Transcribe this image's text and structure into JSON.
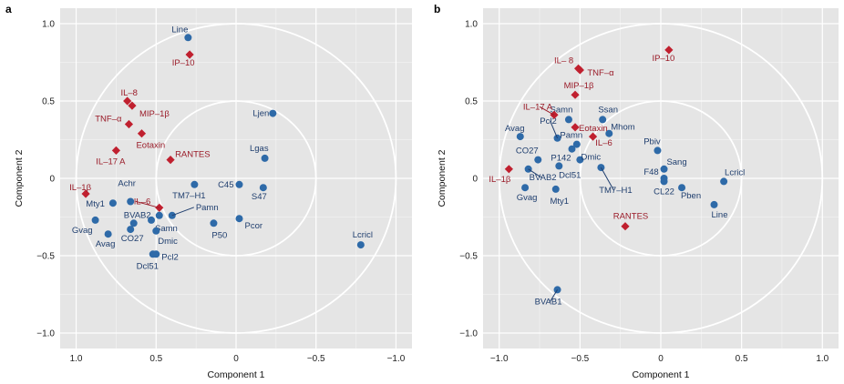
{
  "colors": {
    "panel_bg": "#e5e5e5",
    "grid": "#ffffff",
    "point_blue": "#2e6aa8",
    "label_blue": "#1f3e6e",
    "point_red": "#c0202f",
    "label_red": "#9a1b28"
  },
  "chart_data": [
    {
      "type": "scatter",
      "panel_label": "a",
      "xlabel": "Component 1",
      "ylabel": "Component 2",
      "xlim": [
        1.1,
        -1.1
      ],
      "ylim": [
        -1.1,
        1.1
      ],
      "x_reversed": true,
      "xticks": [
        1.0,
        0.5,
        0.0,
        -0.5,
        -1.0
      ],
      "xtick_labels": [
        "1.0",
        "0.5",
        "0",
        "−0.5",
        "−1.0"
      ],
      "yticks": [
        1.0,
        0.5,
        0.0,
        -0.5,
        -1.0
      ],
      "ytick_labels": [
        "1.0",
        "0.5",
        "0",
        "−0.5",
        "−1.0"
      ],
      "grid": true,
      "circles": [
        1.0,
        0.5
      ],
      "series": [
        {
          "marker": "circle",
          "color_key": "point_blue",
          "points": [
            {
              "label": "Line",
              "x": 0.3,
              "y": 0.91,
              "lx": 0,
              "ly": -6,
              "anchor": "end"
            },
            {
              "label": "Ljen",
              "x": -0.23,
              "y": 0.42,
              "lx": -4,
              "ly": 3,
              "anchor": "end"
            },
            {
              "label": "Lgas",
              "x": -0.18,
              "y": 0.13,
              "lx": 4,
              "ly": -8,
              "anchor": "end"
            },
            {
              "label": "C45",
              "x": -0.02,
              "y": -0.04,
              "lx": -6,
              "ly": 3,
              "anchor": "end"
            },
            {
              "label": "S47",
              "x": -0.17,
              "y": -0.06,
              "lx": 4,
              "ly": 13,
              "anchor": "end"
            },
            {
              "label": "Pcor",
              "x": -0.02,
              "y": -0.26,
              "lx": 6,
              "ly": 11,
              "anchor": "start"
            },
            {
              "label": "P50",
              "x": 0.14,
              "y": -0.29,
              "lx": -2,
              "ly": 16,
              "anchor": "start"
            },
            {
              "label": "TM7–H1",
              "x": 0.26,
              "y": -0.04,
              "lx": -6,
              "ly": 15,
              "anchor": "middle"
            },
            {
              "label": "Pamn",
              "x": 0.4,
              "y": -0.24,
              "lx": 26,
              "ly": -6,
              "anchor": "start"
            },
            {
              "label": "Achr",
              "x": 0.66,
              "y": -0.15,
              "lx": -4,
              "ly": -17,
              "anchor": "middle"
            },
            {
              "label": "Mty1",
              "x": 0.77,
              "y": -0.16,
              "lx": -9,
              "ly": 4,
              "anchor": "end"
            },
            {
              "label": "Gvag",
              "x": 0.88,
              "y": -0.27,
              "lx": -3,
              "ly": 14,
              "anchor": "end"
            },
            {
              "label": "Avag",
              "x": 0.8,
              "y": -0.36,
              "lx": -3,
              "ly": 14,
              "anchor": "middle"
            },
            {
              "label": "BVAB2",
              "x": 0.64,
              "y": -0.29,
              "lx": 4,
              "ly": -6,
              "anchor": "middle"
            },
            {
              "label": "CO27",
              "x": 0.66,
              "y": -0.33,
              "lx": 2,
              "ly": 13,
              "anchor": "middle"
            },
            {
              "label": "Samn",
              "x": 0.53,
              "y": -0.27,
              "lx": 4,
              "ly": 12,
              "anchor": "start"
            },
            {
              "label": "Dmic",
              "x": 0.5,
              "y": -0.34,
              "lx": 2,
              "ly": 14,
              "anchor": "start"
            },
            {
              "label": "Dcl51",
              "x": 0.52,
              "y": -0.49,
              "lx": -6,
              "ly": 16,
              "anchor": "middle"
            },
            {
              "label": "Pcl2",
              "x": 0.5,
              "y": -0.49,
              "lx": 6,
              "ly": 6,
              "anchor": "start"
            },
            {
              "label": "",
              "x": 0.48,
              "y": -0.24,
              "lx": 0,
              "ly": 0,
              "anchor": "start"
            },
            {
              "label": "Lcricl",
              "x": -0.78,
              "y": -0.43,
              "lx": 2,
              "ly": -8,
              "anchor": "middle"
            }
          ]
        },
        {
          "marker": "diamond",
          "color_key": "point_red",
          "points": [
            {
              "label": "IP–10",
              "x": 0.29,
              "y": 0.8,
              "lx": -7,
              "ly": 12,
              "anchor": "middle"
            },
            {
              "label": "IL–8",
              "x": 0.68,
              "y": 0.5,
              "lx": 2,
              "ly": -6,
              "anchor": "middle"
            },
            {
              "label": "MIP–1β",
              "x": 0.65,
              "y": 0.47,
              "lx": 8,
              "ly": 12,
              "anchor": "start"
            },
            {
              "label": "TNF–α",
              "x": 0.67,
              "y": 0.35,
              "lx": -8,
              "ly": -3,
              "anchor": "end"
            },
            {
              "label": "Eotaxin",
              "x": 0.59,
              "y": 0.29,
              "lx": -6,
              "ly": 16,
              "anchor": "start"
            },
            {
              "label": "RANTES",
              "x": 0.41,
              "y": 0.12,
              "lx": 5,
              "ly": -3,
              "anchor": "start"
            },
            {
              "label": "IL–17 A",
              "x": 0.75,
              "y": 0.18,
              "lx": -6,
              "ly": 15,
              "anchor": "middle"
            },
            {
              "label": "IL–1β",
              "x": 0.94,
              "y": -0.1,
              "lx": -6,
              "ly": -4,
              "anchor": "middle"
            },
            {
              "label": "IL–6",
              "x": 0.48,
              "y": -0.19,
              "lx": -28,
              "ly": -4,
              "anchor": "start"
            }
          ]
        }
      ]
    },
    {
      "type": "scatter",
      "panel_label": "b",
      "xlabel": "Component 1",
      "ylabel": "Component 2",
      "xlim": [
        -1.1,
        1.1
      ],
      "ylim": [
        -1.1,
        1.1
      ],
      "x_reversed": false,
      "xticks": [
        -1.0,
        -0.5,
        0.0,
        0.5,
        1.0
      ],
      "xtick_labels": [
        "−1.0",
        "−0.5",
        "0",
        "0.5",
        "1.0"
      ],
      "yticks": [
        1.0,
        0.5,
        0.0,
        -0.5,
        -1.0
      ],
      "ytick_labels": [
        "1.0",
        "0.5",
        "0",
        "−0.5",
        "−1.0"
      ],
      "grid": true,
      "circles": [
        1.0,
        0.5
      ],
      "series": [
        {
          "marker": "circle",
          "color_key": "point_blue",
          "points": [
            {
              "label": "Avag",
              "x": -0.87,
              "y": 0.27,
              "lx": -6,
              "ly": -6,
              "anchor": "middle"
            },
            {
              "label": "Samn",
              "x": -0.57,
              "y": 0.38,
              "lx": -8,
              "ly": -8,
              "anchor": "middle"
            },
            {
              "label": "Ssan",
              "x": -0.36,
              "y": 0.38,
              "lx": 6,
              "ly": -8,
              "anchor": "middle"
            },
            {
              "label": "Mhom",
              "x": -0.32,
              "y": 0.29,
              "lx": 2,
              "ly": -4,
              "anchor": "start"
            },
            {
              "label": "Pcl2",
              "x": -0.64,
              "y": 0.26,
              "lx": -10,
              "ly": -16,
              "anchor": "middle"
            },
            {
              "label": "Pamn",
              "x": -0.52,
              "y": 0.22,
              "lx": -6,
              "ly": -7,
              "anchor": "middle"
            },
            {
              "label": "P142",
              "x": -0.55,
              "y": 0.19,
              "lx": -12,
              "ly": 13,
              "anchor": "middle"
            },
            {
              "label": "CO27",
              "x": -0.76,
              "y": 0.12,
              "lx": -12,
              "ly": -7,
              "anchor": "middle"
            },
            {
              "label": "Dmic",
              "x": -0.5,
              "y": 0.12,
              "lx": 12,
              "ly": 0,
              "anchor": "middle"
            },
            {
              "label": "Dcl51",
              "x": -0.63,
              "y": 0.08,
              "lx": 12,
              "ly": 13,
              "anchor": "middle"
            },
            {
              "label": "BVAB2",
              "x": -0.82,
              "y": 0.06,
              "lx": 16,
              "ly": 12,
              "anchor": "middle"
            },
            {
              "label": "Gvag",
              "x": -0.84,
              "y": -0.06,
              "lx": 2,
              "ly": 14,
              "anchor": "middle"
            },
            {
              "label": "Mty1",
              "x": -0.65,
              "y": -0.07,
              "lx": 4,
              "ly": 16,
              "anchor": "middle"
            },
            {
              "label": "TM7–H1",
              "x": -0.37,
              "y": 0.07,
              "lx": 16,
              "ly": 28,
              "anchor": "middle"
            },
            {
              "label": "Pbiv",
              "x": -0.02,
              "y": 0.18,
              "lx": -6,
              "ly": -7,
              "anchor": "middle"
            },
            {
              "label": "Sang",
              "x": 0.02,
              "y": 0.06,
              "lx": 14,
              "ly": -5,
              "anchor": "middle"
            },
            {
              "label": "F48",
              "x": 0.02,
              "y": 0.0,
              "lx": -14,
              "ly": -4,
              "anchor": "middle"
            },
            {
              "label": "CL22",
              "x": 0.02,
              "y": -0.02,
              "lx": 0,
              "ly": 14,
              "anchor": "middle"
            },
            {
              "label": "Pben",
              "x": 0.13,
              "y": -0.06,
              "lx": 10,
              "ly": 12,
              "anchor": "middle"
            },
            {
              "label": "Lcricl",
              "x": 0.39,
              "y": -0.02,
              "lx": 12,
              "ly": -7,
              "anchor": "middle"
            },
            {
              "label": "Line",
              "x": 0.33,
              "y": -0.17,
              "lx": 6,
              "ly": 14,
              "anchor": "middle"
            },
            {
              "label": "BVAB1",
              "x": -0.64,
              "y": -0.72,
              "lx": -10,
              "ly": 16,
              "anchor": "middle"
            }
          ]
        },
        {
          "marker": "diamond",
          "color_key": "point_red",
          "points": [
            {
              "label": "IL– 8",
              "x": -0.51,
              "y": 0.71,
              "lx": -16,
              "ly": -6,
              "anchor": "middle"
            },
            {
              "label": "TNF–α",
              "x": -0.5,
              "y": 0.7,
              "lx": 8,
              "ly": 6,
              "anchor": "start"
            },
            {
              "label": "IP–10",
              "x": 0.05,
              "y": 0.83,
              "lx": -6,
              "ly": 12,
              "anchor": "middle"
            },
            {
              "label": "MIP–1β",
              "x": -0.53,
              "y": 0.54,
              "lx": 4,
              "ly": -7,
              "anchor": "middle"
            },
            {
              "label": "IL–17 A",
              "x": -0.66,
              "y": 0.41,
              "lx": -18,
              "ly": -6,
              "anchor": "middle"
            },
            {
              "label": "Eotaxin",
              "x": -0.53,
              "y": 0.33,
              "lx": 4,
              "ly": 4,
              "anchor": "start"
            },
            {
              "label": "IL–6",
              "x": -0.42,
              "y": 0.27,
              "lx": 12,
              "ly": 10,
              "anchor": "middle"
            },
            {
              "label": "IL–1β",
              "x": -0.94,
              "y": 0.06,
              "lx": -10,
              "ly": 14,
              "anchor": "middle"
            },
            {
              "label": "RANTES",
              "x": -0.22,
              "y": -0.31,
              "lx": 6,
              "ly": -8,
              "anchor": "middle"
            }
          ]
        }
      ]
    }
  ]
}
